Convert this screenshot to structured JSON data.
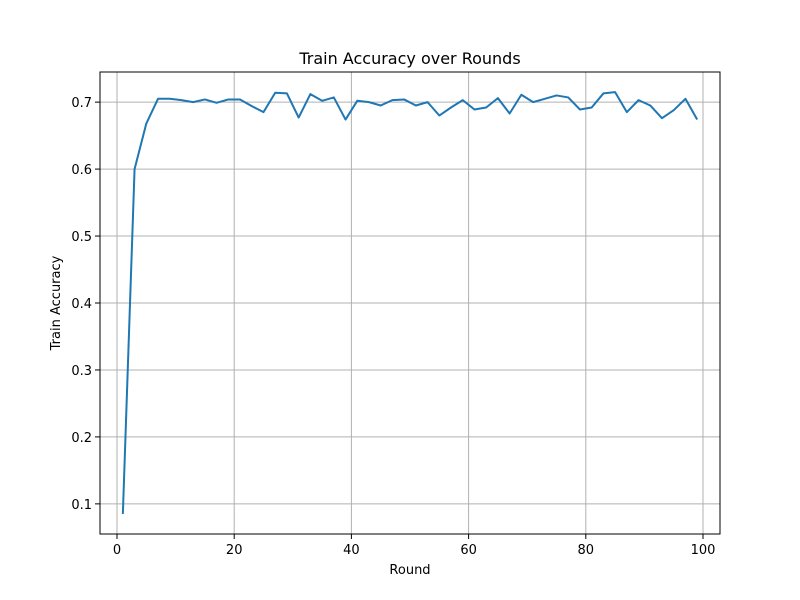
{
  "chart_data": {
    "type": "line",
    "title": "Train Accuracy over Rounds",
    "xlabel": "Round",
    "ylabel": "Train Accuracy",
    "xlim": [
      -2.9,
      102.9
    ],
    "ylim": [
      0.055,
      0.745
    ],
    "xticks": [
      0,
      20,
      40,
      60,
      80,
      100
    ],
    "yticks": [
      0.1,
      0.2,
      0.3,
      0.4,
      0.5,
      0.6,
      0.7
    ],
    "ytick_labels": [
      "0.1",
      "0.2",
      "0.3",
      "0.4",
      "0.5",
      "0.6",
      "0.7"
    ],
    "grid": true,
    "line_color": "#1f77b4",
    "series": [
      {
        "x": [
          1,
          3,
          5,
          7,
          9,
          11,
          13,
          15,
          17,
          19,
          21,
          23,
          25,
          27,
          29,
          31,
          33,
          35,
          37,
          39,
          41,
          43,
          45,
          47,
          49,
          51,
          53,
          55,
          57,
          59,
          61,
          63,
          65,
          67,
          69,
          71,
          73,
          75,
          77,
          79,
          81,
          83,
          85,
          87,
          89,
          91,
          93,
          95,
          97,
          99
        ],
        "values": [
          0.085,
          0.6,
          0.668,
          0.705,
          0.705,
          0.703,
          0.7,
          0.704,
          0.699,
          0.704,
          0.704,
          0.694,
          0.685,
          0.714,
          0.713,
          0.677,
          0.712,
          0.702,
          0.707,
          0.674,
          0.702,
          0.7,
          0.695,
          0.703,
          0.704,
          0.695,
          0.7,
          0.68,
          0.692,
          0.703,
          0.689,
          0.692,
          0.706,
          0.683,
          0.711,
          0.7,
          0.705,
          0.71,
          0.707,
          0.689,
          0.692,
          0.713,
          0.715,
          0.685,
          0.703,
          0.695,
          0.676,
          0.688,
          0.705,
          0.674
        ]
      }
    ]
  }
}
